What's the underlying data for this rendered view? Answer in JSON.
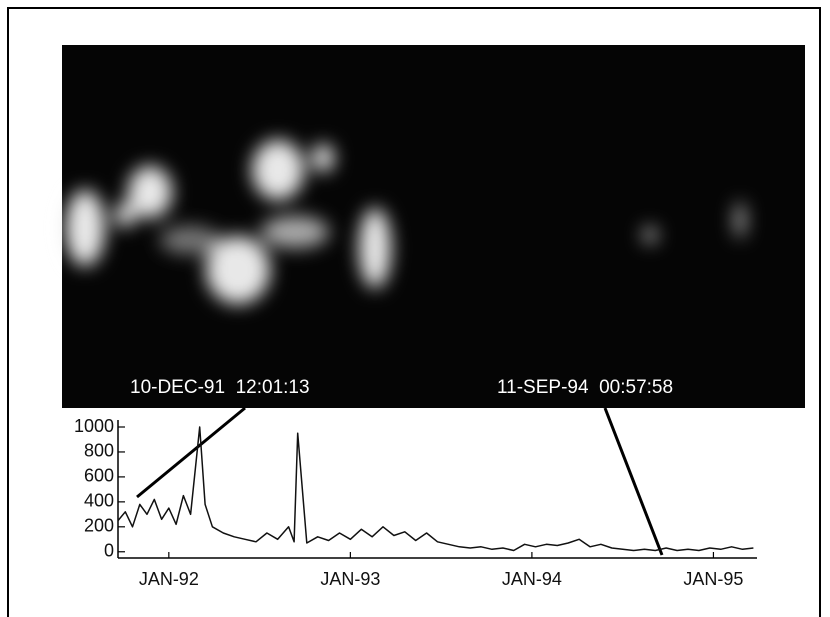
{
  "chart_data": {
    "type": "line",
    "annotations": [
      "10-DEC-91  12:01:13",
      "11-SEP-94  00:57:58"
    ],
    "x": [
      1991.72,
      1991.76,
      1991.8,
      1991.84,
      1991.88,
      1991.92,
      1991.96,
      1992.0,
      1992.04,
      1992.08,
      1992.12,
      1992.17,
      1992.2,
      1992.24,
      1992.3,
      1992.36,
      1992.42,
      1992.48,
      1992.54,
      1992.6,
      1992.66,
      1992.69,
      1992.71,
      1992.76,
      1992.82,
      1992.88,
      1992.94,
      1993.0,
      1993.06,
      1993.12,
      1993.18,
      1993.24,
      1993.3,
      1993.36,
      1993.42,
      1993.48,
      1993.54,
      1993.6,
      1993.66,
      1993.72,
      1993.78,
      1993.84,
      1993.9,
      1993.96,
      1994.02,
      1994.08,
      1994.14,
      1994.2,
      1994.26,
      1994.32,
      1994.38,
      1994.44,
      1994.5,
      1994.56,
      1994.62,
      1994.68,
      1994.74,
      1994.8,
      1994.86,
      1994.92,
      1994.98,
      1995.04,
      1995.1,
      1995.16,
      1995.22
    ],
    "values": [
      250,
      320,
      200,
      380,
      300,
      420,
      260,
      350,
      220,
      450,
      300,
      1000,
      380,
      200,
      150,
      120,
      100,
      80,
      150,
      100,
      200,
      80,
      950,
      70,
      120,
      90,
      150,
      100,
      180,
      120,
      200,
      130,
      160,
      90,
      150,
      80,
      60,
      40,
      30,
      40,
      20,
      30,
      10,
      60,
      40,
      60,
      50,
      70,
      100,
      40,
      60,
      30,
      20,
      10,
      20,
      10,
      30,
      10,
      20,
      10,
      30,
      20,
      40,
      20,
      30
    ],
    "color": "#111111",
    "xlim": [
      1991.72,
      1995.24
    ],
    "xticks": [
      {
        "value": 1992,
        "label": "JAN-92"
      },
      {
        "value": 1993,
        "label": "JAN-93"
      },
      {
        "value": 1994,
        "label": "JAN-94"
      },
      {
        "value": 1995,
        "label": "JAN-95"
      }
    ],
    "ylim": [
      -50,
      1000
    ],
    "yticks": [
      0,
      200,
      400,
      600,
      800,
      1000
    ]
  }
}
